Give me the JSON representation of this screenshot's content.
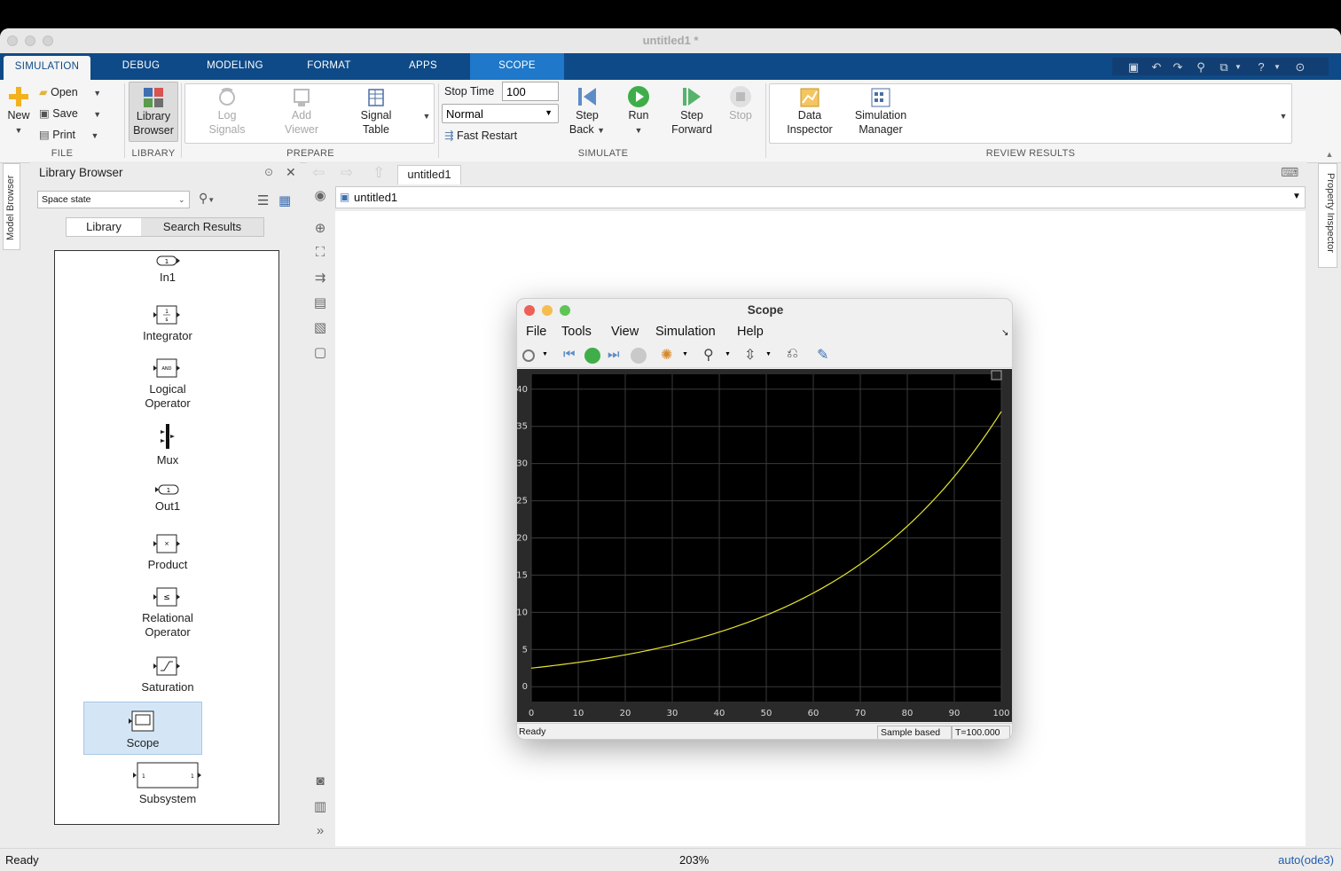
{
  "window": {
    "title": "untitled1 *"
  },
  "ribbon_tabs": [
    {
      "label": "SIMULATION"
    },
    {
      "label": "DEBUG"
    },
    {
      "label": "MODELING"
    },
    {
      "label": "FORMAT"
    },
    {
      "label": "APPS"
    },
    {
      "label": "SCOPE"
    }
  ],
  "ribbon": {
    "file": {
      "new": "New",
      "open": "Open",
      "save": "Save",
      "print": "Print",
      "section": "FILE"
    },
    "library": {
      "library_browser_1": "Library",
      "library_browser_2": "Browser",
      "section": "LIBRARY"
    },
    "prepare": {
      "log_1": "Log",
      "log_2": "Signals",
      "add_1": "Add",
      "add_2": "Viewer",
      "signal_1": "Signal",
      "signal_2": "Table",
      "section": "PREPARE"
    },
    "simulate": {
      "stop_time_label": "Stop Time",
      "stop_time_value": "100",
      "mode_value": "Normal",
      "fast_restart": "Fast Restart",
      "step_back_1": "Step",
      "step_back_2": "Back",
      "run": "Run",
      "step_forward_1": "Step",
      "step_forward_2": "Forward",
      "stop": "Stop",
      "section": "SIMULATE"
    },
    "review": {
      "data_1": "Data",
      "data_2": "Inspector",
      "sim_1": "Simulation",
      "sim_2": "Manager",
      "section": "REVIEW RESULTS"
    }
  },
  "side_tabs": {
    "left": "Model Browser",
    "right": "Property Inspector"
  },
  "library_browser": {
    "title": "Library Browser",
    "search_value": "Space state",
    "tabs": [
      {
        "label": "Library"
      },
      {
        "label": "Search Results"
      }
    ],
    "blocks": [
      {
        "label": "In1",
        "label2": ""
      },
      {
        "label": "Integrator",
        "label2": ""
      },
      {
        "label": "Logical",
        "label2": "Operator"
      },
      {
        "label": "Mux",
        "label2": ""
      },
      {
        "label": "Out1",
        "label2": ""
      },
      {
        "label": "Product",
        "label2": ""
      },
      {
        "label": "Relational",
        "label2": "Operator"
      },
      {
        "label": "Saturation",
        "label2": ""
      },
      {
        "label": "Scope",
        "label2": ""
      },
      {
        "label": "Subsystem",
        "label2": ""
      }
    ],
    "selected_block": "Scope"
  },
  "editor": {
    "tab_label": "untitled1",
    "address": "untitled1"
  },
  "scope": {
    "title": "Scope",
    "menu": [
      "File",
      "Tools",
      "View",
      "Simulation",
      "Help"
    ],
    "status": "Ready",
    "sample_mode": "Sample based",
    "time": "T=100.000"
  },
  "chart_data": {
    "type": "line",
    "title": "",
    "xlabel": "",
    "ylabel": "",
    "xlim": [
      0,
      100
    ],
    "ylim": [
      -2,
      42
    ],
    "xticks": [
      0,
      10,
      20,
      30,
      40,
      50,
      60,
      70,
      80,
      90,
      100
    ],
    "yticks": [
      0,
      5,
      10,
      15,
      20,
      25,
      30,
      35,
      40
    ],
    "grid": true,
    "background": "#000000",
    "series": [
      {
        "color": "#e6e62e",
        "x": [
          0,
          10,
          20,
          30,
          40,
          50,
          60,
          70,
          80,
          90,
          100
        ],
        "y": [
          2.5,
          3.3,
          4.4,
          5.8,
          7.5,
          9.8,
          12.8,
          16.6,
          21.6,
          28.2,
          37.0
        ]
      }
    ]
  },
  "statusbar": {
    "left": "Ready",
    "zoom": "203%",
    "solver": "auto(ode3)"
  },
  "colors": {
    "ribbon_tab_bg": "#0e4a87",
    "scope_tab_bg": "#1f78c9",
    "selection": "#d4e6f6"
  }
}
